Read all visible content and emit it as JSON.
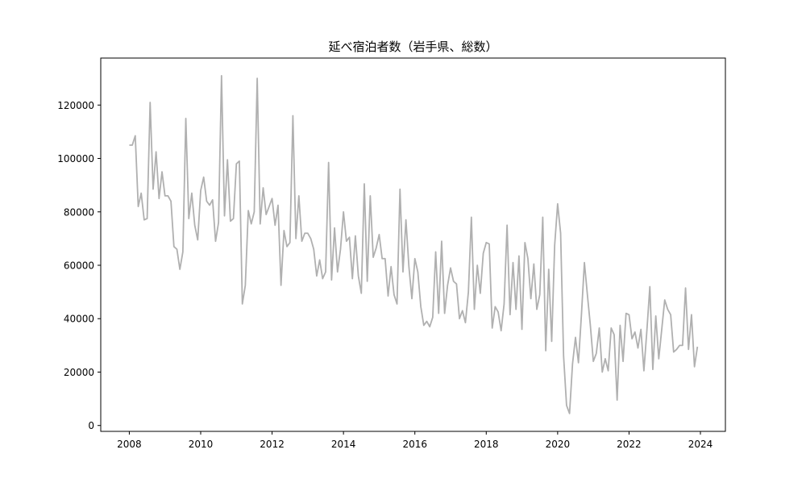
{
  "chart_data": {
    "type": "line",
    "title": "延べ宿泊者数（岩手県、総数）",
    "xlabel": "",
    "ylabel": "",
    "xlim": [
      2007.2,
      2024.7
    ],
    "ylim": [
      -2200,
      137600
    ],
    "x_ticks": [
      2008,
      2010,
      2012,
      2014,
      2016,
      2018,
      2020,
      2022,
      2024
    ],
    "x_tick_labels": [
      "2008",
      "2010",
      "2012",
      "2014",
      "2016",
      "2018",
      "2020",
      "2022",
      "2024"
    ],
    "y_ticks": [
      0,
      20000,
      40000,
      60000,
      80000,
      100000,
      120000
    ],
    "y_tick_labels": [
      "0",
      "20000",
      "40000",
      "60000",
      "80000",
      "100000",
      "120000"
    ],
    "grid": false,
    "colors": {
      "line": "#b0b0b0",
      "axes": "#000000",
      "background": "#ffffff"
    },
    "series": [
      {
        "x_start": "2008-01",
        "frequency": "monthly",
        "values": [
          105000,
          105000,
          108500,
          82000,
          87000,
          77000,
          77500,
          121000,
          88500,
          102500,
          85000,
          95000,
          86000,
          86000,
          84000,
          67000,
          66000,
          58500,
          65000,
          115000,
          77500,
          87000,
          75000,
          69500,
          88000,
          93000,
          84000,
          82500,
          84500,
          69000,
          76000,
          131000,
          78500,
          99500,
          76500,
          77500,
          98000,
          99000,
          45500,
          52500,
          80500,
          75500,
          80000,
          130000,
          75500,
          89000,
          79000,
          82000,
          85000,
          75000,
          82500,
          52500,
          73000,
          67000,
          68500,
          116000,
          70000,
          86000,
          69000,
          72000,
          72000,
          70000,
          66000,
          56000,
          62000,
          55000,
          57500,
          98500,
          54500,
          74000,
          57500,
          66000,
          80000,
          69000,
          70500,
          55000,
          71000,
          56000,
          49500,
          90500,
          54000,
          86000,
          63000,
          66500,
          71500,
          62500,
          62500,
          48500,
          59500,
          49000,
          45500,
          88500,
          57500,
          77000,
          59500,
          47500,
          62500,
          57500,
          44500,
          37500,
          39000,
          37000,
          40500,
          65000,
          42000,
          69000,
          42000,
          52500,
          59000,
          54000,
          53000,
          40000,
          43000,
          38500,
          50000,
          78000,
          43500,
          60000,
          49500,
          64500,
          68500,
          68000,
          36500,
          44500,
          42500,
          35500,
          45500,
          75000,
          41500,
          61000,
          43500,
          63500,
          36000,
          68500,
          62500,
          47500,
          60500,
          43500,
          49000,
          78000,
          28000,
          58500,
          31500,
          67500,
          83000,
          72000,
          26000,
          7500,
          4500,
          23000,
          33000,
          23500,
          41500,
          61000,
          49000,
          37500,
          24000,
          27000,
          36500,
          20000,
          25000,
          20500,
          36500,
          34000,
          9500,
          37500,
          24000,
          42000,
          41500,
          32500,
          35000,
          29000,
          36000,
          20500,
          35500,
          52000,
          21000,
          41000,
          25000,
          36000,
          47000,
          43500,
          41500,
          27500,
          28500,
          30000,
          30000,
          51500,
          28500,
          41500,
          22000,
          29500
        ]
      }
    ]
  }
}
